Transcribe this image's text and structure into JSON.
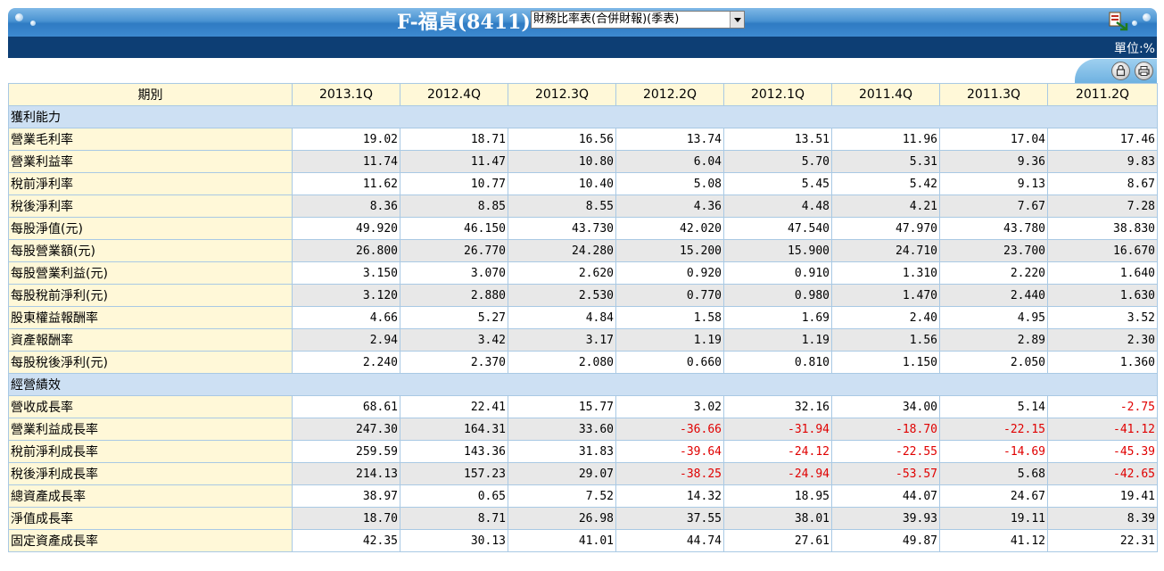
{
  "header": {
    "title": "F-福貞(8411)",
    "report_select": "財務比率表(合併財報)(季表)",
    "unit": "單位:%"
  },
  "table": {
    "period_header": "期別",
    "periods": [
      "2013.1Q",
      "2012.4Q",
      "2012.3Q",
      "2012.2Q",
      "2012.1Q",
      "2011.4Q",
      "2011.3Q",
      "2011.2Q"
    ],
    "sections": [
      {
        "title": "獲利能力",
        "rows": [
          {
            "label": "營業毛利率",
            "values": [
              "19.02",
              "18.71",
              "16.56",
              "13.74",
              "13.51",
              "11.96",
              "17.04",
              "17.46"
            ]
          },
          {
            "label": "營業利益率",
            "values": [
              "11.74",
              "11.47",
              "10.80",
              "6.04",
              "5.70",
              "5.31",
              "9.36",
              "9.83"
            ]
          },
          {
            "label": "稅前淨利率",
            "values": [
              "11.62",
              "10.77",
              "10.40",
              "5.08",
              "5.45",
              "5.42",
              "9.13",
              "8.67"
            ]
          },
          {
            "label": "稅後淨利率",
            "values": [
              "8.36",
              "8.85",
              "8.55",
              "4.36",
              "4.48",
              "4.21",
              "7.67",
              "7.28"
            ]
          },
          {
            "label": "每股淨值(元)",
            "values": [
              "49.920",
              "46.150",
              "43.730",
              "42.020",
              "47.540",
              "47.970",
              "43.780",
              "38.830"
            ]
          },
          {
            "label": "每股營業額(元)",
            "values": [
              "26.800",
              "26.770",
              "24.280",
              "15.200",
              "15.900",
              "24.710",
              "23.700",
              "16.670"
            ]
          },
          {
            "label": "每股營業利益(元)",
            "values": [
              "3.150",
              "3.070",
              "2.620",
              "0.920",
              "0.910",
              "1.310",
              "2.220",
              "1.640"
            ]
          },
          {
            "label": "每股稅前淨利(元)",
            "values": [
              "3.120",
              "2.880",
              "2.530",
              "0.770",
              "0.980",
              "1.470",
              "2.440",
              "1.630"
            ]
          },
          {
            "label": "股東權益報酬率",
            "values": [
              "4.66",
              "5.27",
              "4.84",
              "1.58",
              "1.69",
              "2.40",
              "4.95",
              "3.52"
            ]
          },
          {
            "label": "資產報酬率",
            "values": [
              "2.94",
              "3.42",
              "3.17",
              "1.19",
              "1.19",
              "1.56",
              "2.89",
              "2.30"
            ]
          },
          {
            "label": "每股稅後淨利(元)",
            "values": [
              "2.240",
              "2.370",
              "2.080",
              "0.660",
              "0.810",
              "1.150",
              "2.050",
              "1.360"
            ]
          }
        ]
      },
      {
        "title": "經營績效",
        "rows": [
          {
            "label": "營收成長率",
            "values": [
              "68.61",
              "22.41",
              "15.77",
              "3.02",
              "32.16",
              "34.00",
              "5.14",
              "-2.75"
            ]
          },
          {
            "label": "營業利益成長率",
            "values": [
              "247.30",
              "164.31",
              "33.60",
              "-36.66",
              "-31.94",
              "-18.70",
              "-22.15",
              "-41.12"
            ]
          },
          {
            "label": "稅前淨利成長率",
            "values": [
              "259.59",
              "143.36",
              "31.83",
              "-39.64",
              "-24.12",
              "-22.55",
              "-14.69",
              "-45.39"
            ]
          },
          {
            "label": "稅後淨利成長率",
            "values": [
              "214.13",
              "157.23",
              "29.07",
              "-38.25",
              "-24.94",
              "-53.57",
              "5.68",
              "-42.65"
            ]
          },
          {
            "label": "總資產成長率",
            "values": [
              "38.97",
              "0.65",
              "7.52",
              "14.32",
              "18.95",
              "44.07",
              "24.67",
              "19.41"
            ]
          },
          {
            "label": "淨值成長率",
            "values": [
              "18.70",
              "8.71",
              "26.98",
              "37.55",
              "38.01",
              "39.93",
              "19.11",
              "8.39"
            ]
          },
          {
            "label": "固定資產成長率",
            "values": [
              "42.35",
              "30.13",
              "41.01",
              "44.74",
              "27.61",
              "49.87",
              "41.12",
              "22.31"
            ]
          }
        ]
      }
    ]
  },
  "icons": {
    "export": "excel-export-icon",
    "lock": "lock-icon",
    "print": "print-icon"
  },
  "colors": {
    "negative": "#e00000",
    "header_blue": "#3d8ad0",
    "navy": "#0d3e74",
    "label_bg": "#fff8d8",
    "section_bg": "#cde0f3"
  }
}
